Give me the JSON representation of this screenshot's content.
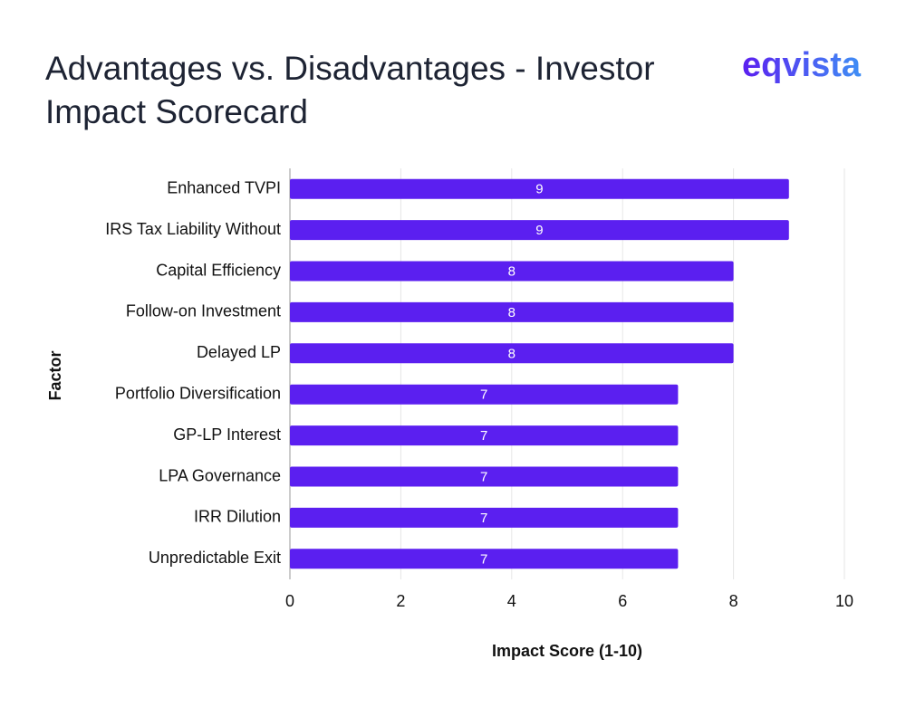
{
  "logo": "eqvista",
  "chart_data": {
    "type": "bar",
    "title": "Advantages vs. Disadvantages - Investor Impact Scorecard",
    "categories": [
      "Enhanced TVPI",
      "IRS Tax Liability Without",
      "Capital Efficiency",
      "Follow-on Investment",
      "Delayed LP",
      "Portfolio Diversification",
      "GP-LP Interest",
      "LPA Governance",
      "IRR Dilution",
      "Unpredictable Exit"
    ],
    "values": [
      9,
      9,
      8,
      8,
      8,
      7,
      7,
      7,
      7,
      7
    ],
    "color": "#5b1ff0",
    "xlabel": "Impact Score (1-10)",
    "ylabel": "Factor",
    "xlim": [
      0,
      10
    ],
    "xticks": [
      0,
      2,
      4,
      6,
      8,
      10
    ],
    "grid": true
  }
}
